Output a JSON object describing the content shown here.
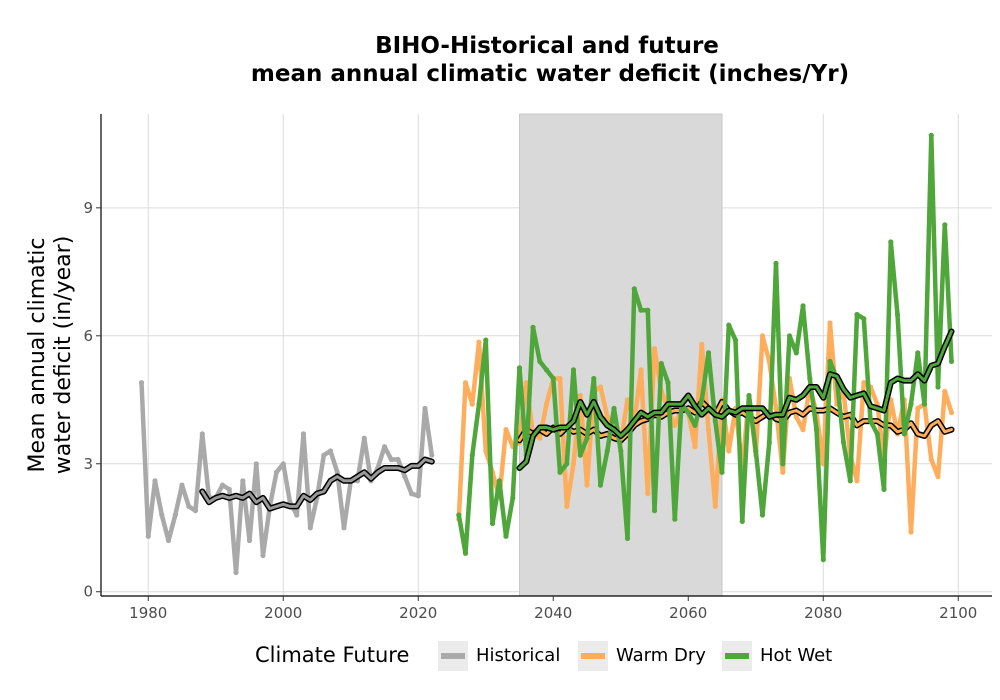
{
  "chart_data": {
    "type": "line",
    "title": "BIHO-Historical and future\nmean annual climatic water deficit (inches/Yr)",
    "title_lines": [
      "BIHO-Historical and future",
      "mean annual climatic water deficit (inches/Yr)"
    ],
    "xlabel": "",
    "ylabel": "Mean annual climatic\nwater deficit (in/year)",
    "ylabel_lines": [
      "Mean annual climatic",
      "water deficit (in/year)"
    ],
    "xlim": [
      1973,
      2105
    ],
    "ylim": [
      -0.1,
      11.2
    ],
    "xticks": [
      1980,
      2000,
      2020,
      2040,
      2060,
      2080,
      2100
    ],
    "yticks": [
      0,
      3,
      6,
      9
    ],
    "grid": true,
    "shaded_period": [
      2035,
      2065
    ],
    "legend": {
      "title": "Climate Future",
      "position": "bottom",
      "entries": [
        "Historical",
        "Warm Dry",
        "Hot Wet"
      ]
    },
    "series": [
      {
        "name": "Historical",
        "color": "#a9a9a9",
        "x": [
          1979,
          1980,
          1981,
          1982,
          1983,
          1984,
          1985,
          1986,
          1987,
          1988,
          1989,
          1990,
          1991,
          1992,
          1993,
          1994,
          1995,
          1996,
          1997,
          1998,
          1999,
          2000,
          2001,
          2002,
          2003,
          2004,
          2005,
          2006,
          2007,
          2008,
          2009,
          2010,
          2011,
          2012,
          2013,
          2014,
          2015,
          2016,
          2017,
          2018,
          2019,
          2020,
          2021,
          2022
        ],
        "values": [
          4.9,
          1.3,
          2.6,
          1.8,
          1.2,
          1.8,
          2.5,
          2.0,
          1.9,
          3.7,
          2.2,
          2.2,
          2.5,
          2.4,
          0.45,
          2.6,
          1.2,
          3.0,
          0.85,
          2.0,
          2.8,
          3.0,
          2.1,
          1.8,
          3.7,
          1.5,
          2.2,
          3.2,
          3.3,
          2.8,
          1.5,
          2.6,
          2.6,
          3.6,
          2.6,
          2.9,
          3.4,
          3.1,
          3.1,
          2.7,
          2.3,
          2.25,
          4.3,
          3.2
        ]
      },
      {
        "name": "Historical (running mean)",
        "color": "#999999",
        "x": [
          1988,
          1989,
          1990,
          1991,
          1992,
          1993,
          1994,
          1995,
          1996,
          1997,
          1998,
          1999,
          2000,
          2001,
          2002,
          2003,
          2004,
          2005,
          2006,
          2007,
          2008,
          2009,
          2010,
          2011,
          2012,
          2013,
          2014,
          2015,
          2016,
          2017,
          2018,
          2019,
          2020,
          2021,
          2022
        ],
        "values": [
          2.35,
          2.1,
          2.2,
          2.25,
          2.2,
          2.25,
          2.2,
          2.3,
          2.1,
          2.2,
          1.95,
          2.0,
          2.05,
          2.0,
          2.0,
          2.25,
          2.15,
          2.3,
          2.35,
          2.6,
          2.7,
          2.6,
          2.6,
          2.7,
          2.8,
          2.65,
          2.8,
          2.9,
          2.9,
          2.9,
          2.85,
          2.95,
          2.95,
          3.1,
          3.05
        ]
      },
      {
        "name": "Warm Dry",
        "color": "#fdad5c",
        "x": [
          2026,
          2027,
          2028,
          2029,
          2030,
          2031,
          2032,
          2033,
          2034,
          2035,
          2036,
          2037,
          2038,
          2039,
          2040,
          2041,
          2042,
          2043,
          2044,
          2045,
          2046,
          2047,
          2048,
          2049,
          2050,
          2051,
          2052,
          2053,
          2054,
          2055,
          2056,
          2057,
          2058,
          2059,
          2060,
          2061,
          2062,
          2063,
          2064,
          2065,
          2066,
          2067,
          2068,
          2069,
          2070,
          2071,
          2072,
          2073,
          2074,
          2075,
          2076,
          2077,
          2078,
          2079,
          2080,
          2081,
          2082,
          2083,
          2084,
          2085,
          2086,
          2087,
          2088,
          2089,
          2090,
          2091,
          2092,
          2093,
          2094,
          2095,
          2096,
          2097,
          2098,
          2099
        ],
        "values": [
          1.7,
          4.9,
          4.4,
          5.85,
          3.3,
          2.8,
          2.2,
          3.8,
          3.4,
          3.5,
          4.9,
          3.7,
          3.6,
          4.4,
          5.0,
          5.0,
          2.0,
          3.0,
          4.6,
          2.5,
          4.7,
          4.8,
          4.1,
          3.7,
          3.5,
          4.5,
          4.0,
          5.2,
          2.3,
          5.7,
          4.7,
          4.3,
          3.9,
          4.3,
          4.2,
          3.4,
          5.8,
          3.8,
          2.0,
          4.5,
          3.3,
          4.3,
          2.9,
          4.6,
          3.2,
          6.0,
          5.4,
          4.3,
          2.8,
          5.0,
          4.1,
          3.8,
          4.8,
          4.2,
          3.0,
          6.3,
          4.4,
          4.7,
          3.2,
          2.6,
          4.9,
          4.8,
          4.4,
          3.1,
          4.5,
          3.7,
          4.5,
          1.4,
          4.3,
          4.4,
          3.1,
          2.7,
          4.7,
          4.2
        ]
      },
      {
        "name": "Warm Dry (running mean)",
        "color": "#fdad5c",
        "x": [
          2035,
          2036,
          2037,
          2038,
          2039,
          2040,
          2041,
          2042,
          2043,
          2044,
          2045,
          2046,
          2047,
          2048,
          2049,
          2050,
          2051,
          2052,
          2053,
          2054,
          2055,
          2056,
          2057,
          2058,
          2059,
          2060,
          2061,
          2062,
          2063,
          2064,
          2065,
          2066,
          2067,
          2068,
          2069,
          2070,
          2071,
          2072,
          2073,
          2074,
          2075,
          2076,
          2077,
          2078,
          2079,
          2080,
          2081,
          2082,
          2083,
          2084,
          2085,
          2086,
          2087,
          2088,
          2089,
          2090,
          2091,
          2092,
          2093,
          2094,
          2095,
          2096,
          2097,
          2098,
          2099
        ],
        "values": [
          3.55,
          3.8,
          3.7,
          3.8,
          3.7,
          3.85,
          3.7,
          3.85,
          3.75,
          3.8,
          3.7,
          3.8,
          3.65,
          3.7,
          3.6,
          3.55,
          3.7,
          3.9,
          4.0,
          4.05,
          4.15,
          4.1,
          4.2,
          4.25,
          4.25,
          4.3,
          4.2,
          4.45,
          4.3,
          4.15,
          4.45,
          4.25,
          4.15,
          4.2,
          4.1,
          4.0,
          4.1,
          4.2,
          4.05,
          4.0,
          4.2,
          4.25,
          4.15,
          4.3,
          4.25,
          4.25,
          4.3,
          4.2,
          4.1,
          4.15,
          3.9,
          4.0,
          4.0,
          4.0,
          3.9,
          3.9,
          3.75,
          3.8,
          3.95,
          3.7,
          3.65,
          3.9,
          4.0,
          3.75,
          3.8
        ]
      },
      {
        "name": "Hot Wet",
        "color": "#4fa63a",
        "x": [
          2026,
          2027,
          2028,
          2029,
          2030,
          2031,
          2032,
          2033,
          2034,
          2035,
          2036,
          2037,
          2038,
          2039,
          2040,
          2041,
          2042,
          2043,
          2044,
          2045,
          2046,
          2047,
          2048,
          2049,
          2050,
          2051,
          2052,
          2053,
          2054,
          2055,
          2056,
          2057,
          2058,
          2059,
          2060,
          2061,
          2062,
          2063,
          2064,
          2065,
          2066,
          2067,
          2068,
          2069,
          2070,
          2071,
          2072,
          2073,
          2074,
          2075,
          2076,
          2077,
          2078,
          2079,
          2080,
          2081,
          2082,
          2083,
          2084,
          2085,
          2086,
          2087,
          2088,
          2089,
          2090,
          2091,
          2092,
          2093,
          2094,
          2095,
          2096,
          2097,
          2098,
          2099
        ],
        "values": [
          1.8,
          0.9,
          3.2,
          4.4,
          5.9,
          1.6,
          2.6,
          1.3,
          2.2,
          5.25,
          3.2,
          6.2,
          5.4,
          5.2,
          5.0,
          2.8,
          3.0,
          5.2,
          3.2,
          3.6,
          5.0,
          2.5,
          3.3,
          4.3,
          3.3,
          1.25,
          7.1,
          6.6,
          6.6,
          1.9,
          5.35,
          4.9,
          1.7,
          4.4,
          4.2,
          3.9,
          4.5,
          5.6,
          4.0,
          2.8,
          6.25,
          5.9,
          1.65,
          4.6,
          3.3,
          1.8,
          3.5,
          7.7,
          3.0,
          6.0,
          5.6,
          6.7,
          5.0,
          3.8,
          0.75,
          5.4,
          5.0,
          3.5,
          2.6,
          6.5,
          6.4,
          4.0,
          3.7,
          2.4,
          8.2,
          6.5,
          3.7,
          4.4,
          5.6,
          4.4,
          10.7,
          4.8,
          8.6,
          5.4
        ]
      },
      {
        "name": "Hot Wet (running mean)",
        "color": "#4fa63a",
        "x": [
          2035,
          2036,
          2037,
          2038,
          2039,
          2040,
          2041,
          2042,
          2043,
          2044,
          2045,
          2046,
          2047,
          2048,
          2049,
          2050,
          2051,
          2052,
          2053,
          2054,
          2055,
          2056,
          2057,
          2058,
          2059,
          2060,
          2061,
          2062,
          2063,
          2064,
          2065,
          2066,
          2067,
          2068,
          2069,
          2070,
          2071,
          2072,
          2073,
          2074,
          2075,
          2076,
          2077,
          2078,
          2079,
          2080,
          2081,
          2082,
          2083,
          2084,
          2085,
          2086,
          2087,
          2088,
          2089,
          2090,
          2091,
          2092,
          2093,
          2094,
          2095,
          2096,
          2097,
          2098,
          2099
        ],
        "values": [
          2.9,
          3.05,
          3.65,
          3.85,
          3.85,
          3.8,
          3.85,
          3.85,
          4.0,
          4.45,
          4.15,
          4.45,
          4.1,
          3.9,
          3.8,
          3.65,
          3.8,
          4.0,
          4.2,
          4.1,
          4.2,
          4.2,
          4.4,
          4.4,
          4.4,
          4.6,
          4.35,
          4.15,
          4.3,
          4.15,
          4.1,
          4.25,
          4.2,
          4.3,
          4.3,
          4.3,
          4.3,
          4.1,
          4.15,
          4.15,
          4.55,
          4.5,
          4.6,
          4.8,
          4.8,
          4.55,
          5.1,
          5.05,
          4.75,
          4.55,
          4.6,
          4.65,
          4.35,
          4.3,
          4.25,
          4.9,
          5.0,
          4.95,
          4.95,
          5.1,
          4.95,
          5.3,
          5.35,
          5.75,
          6.1
        ]
      }
    ]
  }
}
